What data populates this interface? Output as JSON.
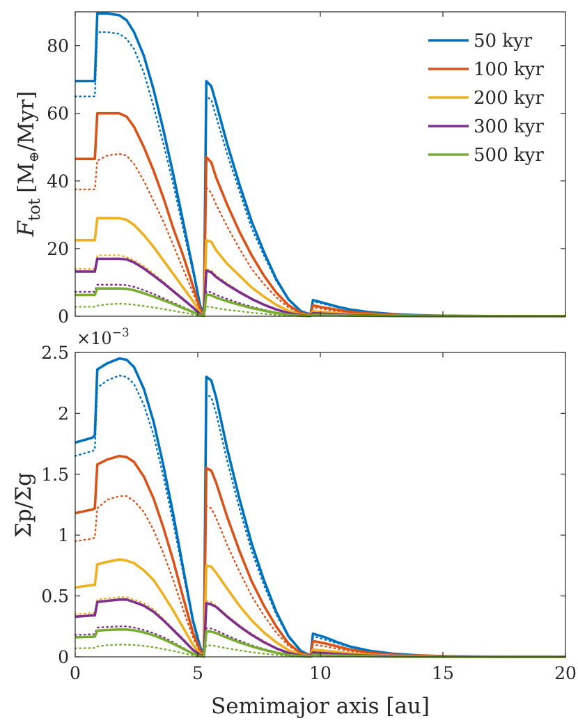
{
  "chart_data": [
    {
      "type": "line",
      "panel": "top",
      "title": "",
      "xlabel": "",
      "ylabel_symbol": "F",
      "ylabel_subscript": "tot",
      "ylabel_units": "[M",
      "ylabel_units_subscript": "⊕",
      "ylabel_units_tail": "/Myr]",
      "xlim": [
        0,
        20
      ],
      "ylim": [
        0,
        90
      ],
      "xticks": [
        0,
        5,
        10,
        15,
        20
      ],
      "yticks": [
        0,
        20,
        40,
        60,
        80
      ],
      "legend_position": "top-right",
      "x": [
        0,
        0.8,
        0.9,
        1.3,
        1.8,
        2.1,
        2.4,
        2.8,
        3.2,
        3.6,
        4.0,
        4.4,
        4.8,
        5.1,
        5.25,
        5.35,
        5.55,
        5.75,
        6.2,
        6.7,
        7.2,
        7.7,
        8.2,
        8.7,
        9.2,
        9.6,
        9.7,
        10.2,
        10.7,
        11.2,
        12.0,
        13.0,
        14.0,
        15.0,
        16.0,
        17.0,
        18.0,
        19.0,
        20.0
      ],
      "series": [
        {
          "name": "50 kyr",
          "color": "#0072BD",
          "style": "solid",
          "values": [
            69.5,
            69.5,
            89.5,
            89.5,
            89,
            87.5,
            84,
            77,
            67,
            55,
            42,
            28,
            14,
            3,
            1,
            69.5,
            68,
            63,
            51,
            39,
            28,
            19,
            11,
            5,
            1.5,
            0.5,
            4.8,
            3.8,
            2.8,
            2.0,
            1.2,
            0.6,
            0.3,
            0.15,
            0.08,
            0.04,
            0.02,
            0.01,
            0
          ]
        },
        {
          "name": "50 kyr (dotted)",
          "color": "#0072BD",
          "style": "dotted",
          "values": [
            65,
            65,
            84,
            84,
            83.5,
            82,
            79,
            72,
            62,
            51,
            39,
            26,
            13,
            3,
            1,
            65,
            64,
            59,
            48,
            37,
            26,
            18,
            10.5,
            4.8,
            1.4,
            0.5,
            4.4,
            3.5,
            2.6,
            1.9,
            1.1,
            0.55,
            0.28,
            0.14,
            0.07,
            0.03,
            0.02,
            0.01,
            0
          ]
        },
        {
          "name": "100 kyr",
          "color": "#D95319",
          "style": "solid",
          "values": [
            46.5,
            46.5,
            60,
            60,
            60,
            59,
            56,
            50,
            43,
            35,
            26,
            18,
            9,
            2,
            0.5,
            47,
            45.5,
            41,
            33,
            25,
            18,
            12,
            7,
            3.3,
            1,
            0.3,
            3.2,
            2.5,
            1.9,
            1.3,
            0.8,
            0.4,
            0.2,
            0.1,
            0.05,
            0.03,
            0.01,
            0.01,
            0
          ]
        },
        {
          "name": "100 kyr (dotted)",
          "color": "#D95319",
          "style": "dotted",
          "values": [
            37.5,
            37.5,
            46,
            47.5,
            48,
            47.5,
            45,
            40,
            34,
            28,
            21,
            14,
            7,
            1.7,
            0.4,
            38,
            36.5,
            33,
            26.5,
            20,
            14,
            9.5,
            5.6,
            2.6,
            0.8,
            0.3,
            2.6,
            2.0,
            1.5,
            1.05,
            0.6,
            0.3,
            0.15,
            0.08,
            0.04,
            0.02,
            0.01,
            0,
            0
          ]
        },
        {
          "name": "200 kyr",
          "color": "#EDB120",
          "style": "solid",
          "values": [
            22.5,
            22.5,
            29,
            29,
            29,
            28.5,
            27,
            24,
            20.5,
            16.5,
            12.5,
            8.5,
            4.5,
            1,
            0.3,
            22.5,
            22,
            19.5,
            15.5,
            12,
            8.5,
            5.8,
            3.4,
            1.6,
            0.5,
            0.2,
            1.5,
            1.2,
            0.9,
            0.6,
            0.36,
            0.18,
            0.09,
            0.05,
            0.02,
            0.01,
            0,
            0,
            0
          ]
        },
        {
          "name": "200 kyr (dotted)",
          "color": "#EDB120",
          "style": "dotted",
          "values": [
            14,
            14,
            18,
            18,
            18,
            17.5,
            16.5,
            14.8,
            12.6,
            10.2,
            7.7,
            5.2,
            2.7,
            0.7,
            0.2,
            14,
            13.5,
            12,
            9.7,
            7.4,
            5.3,
            3.6,
            2.1,
            1.0,
            0.3,
            0.1,
            0.95,
            0.75,
            0.55,
            0.38,
            0.22,
            0.11,
            0.06,
            0.03,
            0.01,
            0.01,
            0,
            0,
            0
          ]
        },
        {
          "name": "300 kyr",
          "color": "#7E2F8E",
          "style": "solid",
          "values": [
            13.2,
            13.2,
            17,
            17,
            17,
            16.8,
            15.9,
            14.1,
            12,
            9.8,
            7.4,
            5,
            2.6,
            0.6,
            0.2,
            13.5,
            13,
            11.6,
            9.3,
            7.1,
            5.1,
            3.4,
            2.0,
            0.95,
            0.3,
            0.1,
            0.9,
            0.7,
            0.52,
            0.36,
            0.22,
            0.11,
            0.05,
            0.03,
            0.01,
            0.01,
            0,
            0,
            0
          ]
        },
        {
          "name": "300 kyr (dotted)",
          "color": "#7E2F8E",
          "style": "dotted",
          "values": [
            7.2,
            7.2,
            9.3,
            9.3,
            9.3,
            9.2,
            8.7,
            7.7,
            6.6,
            5.3,
            4.0,
            2.7,
            1.4,
            0.35,
            0.1,
            7.3,
            7.1,
            6.3,
            5.1,
            3.9,
            2.8,
            1.9,
            1.1,
            0.52,
            0.16,
            0.05,
            0.5,
            0.4,
            0.3,
            0.2,
            0.12,
            0.06,
            0.03,
            0.02,
            0.01,
            0,
            0,
            0,
            0
          ]
        },
        {
          "name": "500 kyr",
          "color": "#77AC30",
          "style": "solid",
          "values": [
            6.3,
            6.3,
            8.2,
            8.2,
            8.2,
            8.1,
            7.7,
            6.8,
            5.8,
            4.7,
            3.6,
            2.4,
            1.25,
            0.3,
            0.1,
            6.4,
            6.2,
            5.5,
            4.4,
            3.4,
            2.4,
            1.65,
            0.97,
            0.46,
            0.14,
            0.05,
            0.45,
            0.35,
            0.26,
            0.18,
            0.11,
            0.05,
            0.03,
            0.01,
            0.01,
            0,
            0,
            0,
            0
          ]
        },
        {
          "name": "500 kyr (dotted)",
          "color": "#77AC30",
          "style": "dotted",
          "values": [
            2.8,
            2.8,
            3.1,
            3.5,
            3.7,
            3.6,
            3.4,
            3.0,
            2.6,
            2.1,
            1.6,
            1.1,
            0.55,
            0.14,
            0.05,
            2.8,
            2.7,
            2.4,
            1.9,
            1.5,
            1.05,
            0.72,
            0.42,
            0.2,
            0.06,
            0.02,
            0.2,
            0.16,
            0.12,
            0.08,
            0.05,
            0.02,
            0.01,
            0.01,
            0,
            0,
            0,
            0,
            0
          ]
        }
      ]
    },
    {
      "type": "line",
      "panel": "bottom",
      "title": "",
      "xlabel": "Semimajor axis [au]",
      "ylabel": "Σp/Σg",
      "exponent_prefix": "×10",
      "exponent_power": "−3",
      "xlim": [
        0,
        20
      ],
      "ylim": [
        0,
        2.5
      ],
      "xticks": [
        0,
        5,
        10,
        15,
        20
      ],
      "xtick_labels": [
        "0",
        "5",
        "10",
        "15",
        "20"
      ],
      "yticks": [
        0,
        0.5,
        1,
        1.5,
        2,
        2.5
      ],
      "ytick_labels": [
        "0",
        "0.5",
        "1",
        "1.5",
        "2",
        "2.5"
      ],
      "x": [
        0,
        0.7,
        0.8,
        0.9,
        1.3,
        1.8,
        2.1,
        2.4,
        2.8,
        3.2,
        3.6,
        4.0,
        4.4,
        4.8,
        5.1,
        5.25,
        5.35,
        5.55,
        5.75,
        6.2,
        6.7,
        7.2,
        7.7,
        8.2,
        8.7,
        9.2,
        9.6,
        9.7,
        10.2,
        10.7,
        11.2,
        12.0,
        13.0,
        14.0,
        15.0,
        16.0,
        17.0,
        18.0,
        19.0,
        20.0
      ],
      "series": [
        {
          "name": "50 kyr",
          "color": "#0072BD",
          "style": "solid",
          "values": [
            1.76,
            1.8,
            1.82,
            2.36,
            2.41,
            2.45,
            2.44,
            2.38,
            2.2,
            1.93,
            1.57,
            1.17,
            0.73,
            0.3,
            0.08,
            0.02,
            2.3,
            2.27,
            2.13,
            1.71,
            1.3,
            0.93,
            0.63,
            0.37,
            0.17,
            0.05,
            0.01,
            0.19,
            0.16,
            0.12,
            0.085,
            0.05,
            0.025,
            0.012,
            0.006,
            0.003,
            0.001,
            0,
            0,
            0
          ]
        },
        {
          "name": "50 kyr (dotted)",
          "color": "#0072BD",
          "style": "dotted",
          "values": [
            1.65,
            1.69,
            1.7,
            2.21,
            2.27,
            2.31,
            2.3,
            2.24,
            2.07,
            1.82,
            1.48,
            1.1,
            0.69,
            0.28,
            0.07,
            0.02,
            2.16,
            2.13,
            2.0,
            1.61,
            1.22,
            0.87,
            0.59,
            0.35,
            0.16,
            0.05,
            0.01,
            0.17,
            0.14,
            0.11,
            0.08,
            0.045,
            0.022,
            0.011,
            0.005,
            0.003,
            0.001,
            0,
            0,
            0
          ]
        },
        {
          "name": "100 kyr",
          "color": "#D95319",
          "style": "solid",
          "values": [
            1.18,
            1.21,
            1.22,
            1.58,
            1.62,
            1.65,
            1.64,
            1.6,
            1.48,
            1.3,
            1.06,
            0.79,
            0.49,
            0.2,
            0.05,
            0.01,
            1.55,
            1.53,
            1.43,
            1.15,
            0.87,
            0.62,
            0.42,
            0.25,
            0.11,
            0.03,
            0.01,
            0.13,
            0.11,
            0.085,
            0.06,
            0.034,
            0.017,
            0.008,
            0.004,
            0.002,
            0.001,
            0,
            0,
            0
          ]
        },
        {
          "name": "100 kyr (dotted)",
          "color": "#D95319",
          "style": "dotted",
          "values": [
            0.95,
            0.97,
            0.98,
            1.22,
            1.29,
            1.32,
            1.32,
            1.28,
            1.19,
            1.04,
            0.85,
            0.63,
            0.39,
            0.16,
            0.04,
            0.01,
            1.24,
            1.22,
            1.14,
            0.92,
            0.7,
            0.5,
            0.34,
            0.2,
            0.09,
            0.03,
            0.01,
            0.1,
            0.085,
            0.066,
            0.047,
            0.027,
            0.013,
            0.006,
            0.003,
            0.002,
            0.001,
            0,
            0,
            0
          ]
        },
        {
          "name": "200 kyr",
          "color": "#EDB120",
          "style": "solid",
          "values": [
            0.57,
            0.59,
            0.59,
            0.76,
            0.78,
            0.8,
            0.79,
            0.77,
            0.71,
            0.63,
            0.51,
            0.38,
            0.24,
            0.1,
            0.025,
            0.01,
            0.75,
            0.74,
            0.69,
            0.56,
            0.42,
            0.3,
            0.2,
            0.12,
            0.055,
            0.016,
            0.004,
            0.06,
            0.05,
            0.04,
            0.028,
            0.016,
            0.008,
            0.004,
            0.002,
            0.001,
            0,
            0,
            0,
            0
          ]
        },
        {
          "name": "200 kyr (dotted)",
          "color": "#EDB120",
          "style": "dotted",
          "values": [
            0.35,
            0.36,
            0.36,
            0.47,
            0.48,
            0.49,
            0.49,
            0.47,
            0.44,
            0.39,
            0.31,
            0.23,
            0.15,
            0.06,
            0.015,
            0.005,
            0.46,
            0.45,
            0.42,
            0.34,
            0.26,
            0.19,
            0.13,
            0.074,
            0.034,
            0.01,
            0.003,
            0.037,
            0.031,
            0.024,
            0.017,
            0.01,
            0.005,
            0.002,
            0.001,
            0.001,
            0,
            0,
            0,
            0
          ]
        },
        {
          "name": "300 kyr",
          "color": "#7E2F8E",
          "style": "solid",
          "values": [
            0.33,
            0.34,
            0.34,
            0.45,
            0.46,
            0.47,
            0.47,
            0.45,
            0.42,
            0.37,
            0.3,
            0.22,
            0.14,
            0.057,
            0.015,
            0.005,
            0.44,
            0.43,
            0.41,
            0.33,
            0.25,
            0.18,
            0.12,
            0.07,
            0.032,
            0.01,
            0.002,
            0.036,
            0.03,
            0.023,
            0.016,
            0.01,
            0.005,
            0.002,
            0.001,
            0.001,
            0,
            0,
            0,
            0
          ]
        },
        {
          "name": "300 kyr (dotted)",
          "color": "#7E2F8E",
          "style": "dotted",
          "values": [
            0.18,
            0.185,
            0.186,
            0.24,
            0.245,
            0.25,
            0.25,
            0.24,
            0.22,
            0.195,
            0.16,
            0.12,
            0.074,
            0.03,
            0.008,
            0.003,
            0.235,
            0.232,
            0.217,
            0.175,
            0.133,
            0.095,
            0.064,
            0.038,
            0.017,
            0.005,
            0.001,
            0.019,
            0.016,
            0.012,
            0.009,
            0.005,
            0.003,
            0.001,
            0.001,
            0,
            0,
            0,
            0,
            0
          ]
        },
        {
          "name": "500 kyr",
          "color": "#77AC30",
          "style": "solid",
          "values": [
            0.16,
            0.165,
            0.166,
            0.215,
            0.22,
            0.225,
            0.224,
            0.218,
            0.2,
            0.177,
            0.144,
            0.107,
            0.067,
            0.027,
            0.007,
            0.002,
            0.21,
            0.207,
            0.195,
            0.157,
            0.119,
            0.085,
            0.058,
            0.034,
            0.016,
            0.005,
            0.001,
            0.017,
            0.014,
            0.011,
            0.008,
            0.005,
            0.002,
            0.001,
            0,
            0,
            0,
            0,
            0,
            0
          ]
        },
        {
          "name": "500 kyr (dotted)",
          "color": "#77AC30",
          "style": "dotted",
          "values": [
            0.07,
            0.072,
            0.073,
            0.085,
            0.095,
            0.1,
            0.1,
            0.097,
            0.09,
            0.079,
            0.064,
            0.048,
            0.03,
            0.012,
            0.003,
            0.001,
            0.095,
            0.093,
            0.087,
            0.07,
            0.053,
            0.038,
            0.026,
            0.015,
            0.007,
            0.002,
            0.001,
            0.008,
            0.007,
            0.005,
            0.004,
            0.002,
            0.001,
            0,
            0,
            0,
            0,
            0,
            0,
            0
          ]
        }
      ]
    }
  ]
}
